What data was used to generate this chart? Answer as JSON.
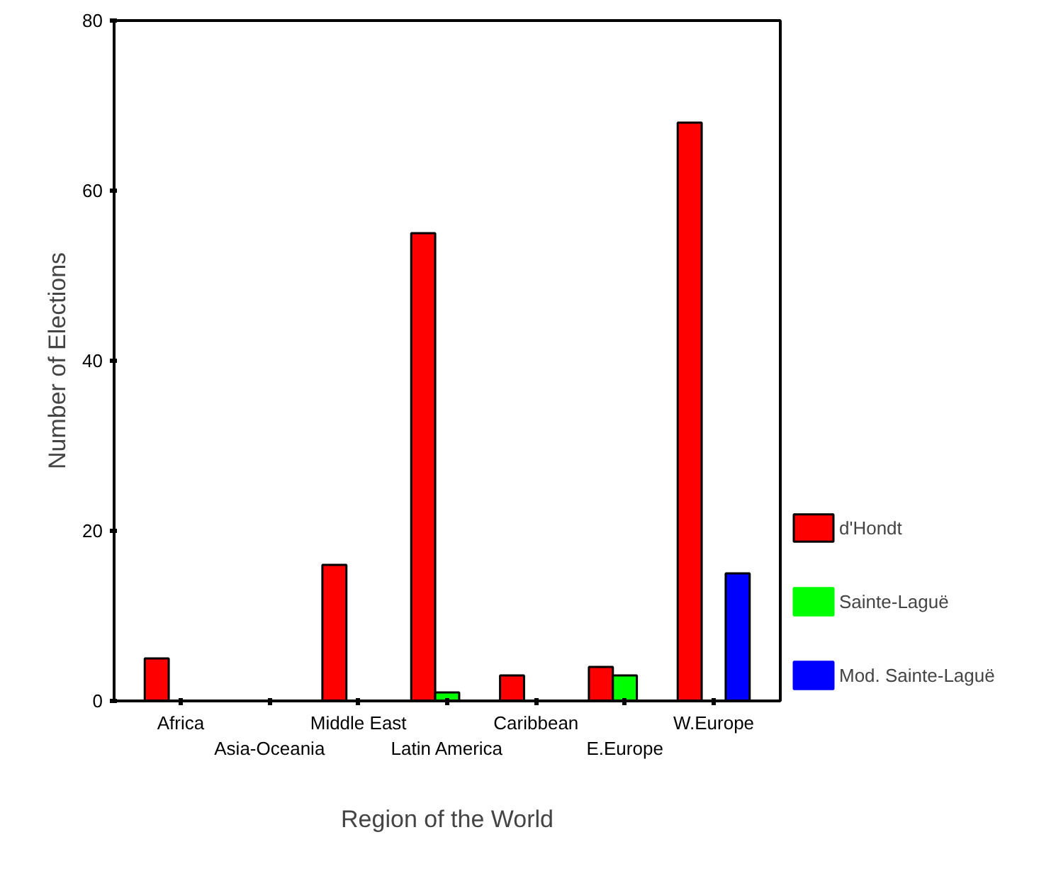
{
  "chart_data": {
    "type": "bar",
    "xlabel": "Region of the World",
    "ylabel": "Number of Elections",
    "categories": [
      "Africa",
      "Asia-Oceania",
      "Middle East",
      "Latin America",
      "Caribbean",
      "E.Europe",
      "W.Europe"
    ],
    "series": [
      {
        "name": "d'Hondt",
        "color": "#ff0000",
        "values": [
          5,
          0,
          16,
          55,
          3,
          4,
          68
        ]
      },
      {
        "name": "Sainte-Laguë",
        "color": "#00ff00",
        "values": [
          0,
          0,
          0,
          1,
          0,
          3,
          0
        ]
      },
      {
        "name": "Mod. Sainte-Laguë",
        "color": "#0000ff",
        "values": [
          0,
          0,
          0,
          0,
          0,
          0,
          15
        ]
      }
    ],
    "ylim": [
      0,
      80
    ],
    "yticks": [
      0,
      20,
      40,
      60,
      80
    ],
    "grid": false,
    "legend": "right"
  }
}
